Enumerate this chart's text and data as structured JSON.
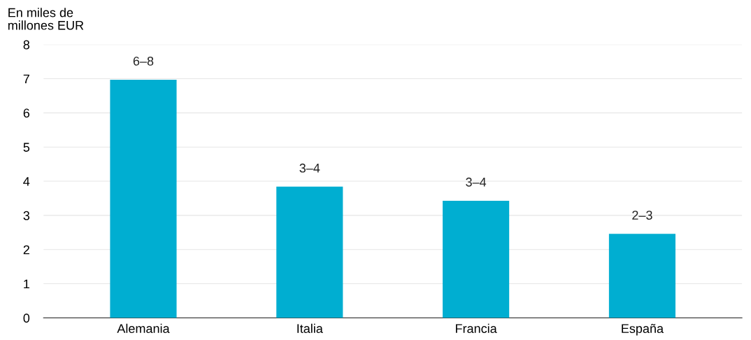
{
  "chart_data": {
    "type": "bar",
    "ylabel": "En miles de\nmillones EUR",
    "categories": [
      "Alemania",
      "Italia",
      "Francia",
      "España"
    ],
    "values": [
      6.97,
      3.84,
      3.43,
      2.46
    ],
    "value_labels": [
      "6–8",
      "3–4",
      "3–4",
      "2–3"
    ],
    "color": "#00aed1",
    "ylim": [
      0,
      8
    ],
    "yticks": [
      0,
      1,
      2,
      3,
      4,
      5,
      6,
      7,
      8
    ],
    "grid": "y"
  }
}
